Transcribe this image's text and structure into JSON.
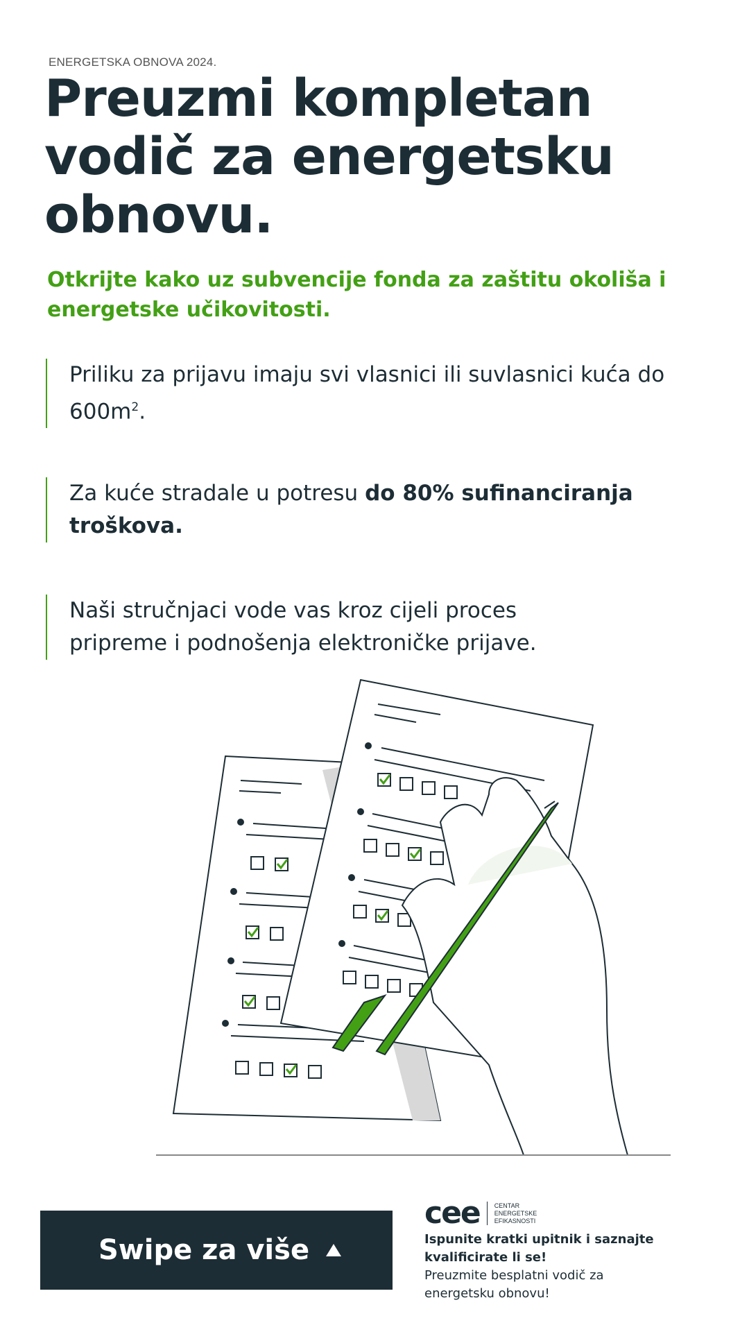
{
  "eyebrow": "ENERGETSKA OBNOVA 2024.",
  "title": "Preuzmi kompletan vodič za energetsku obnovu.",
  "subtitle": "Otkrijte kako uz subvencije fonda za zaštitu okoliša i energetske učikovitosti.",
  "points": [
    {
      "text": "Priliku za prijavu imaju svi vlasnici ili suvlasnici kuća do 600m",
      "sup": "2",
      "suffix": "."
    },
    {
      "text": "Za kuće stradale u potresu ",
      "bold": "do 80% sufinanciranja troškova."
    },
    {
      "text": "Naši stručnjaci vode vas kroz cijeli proces pripreme i podnošenja elektroničke prijave."
    }
  ],
  "cta": {
    "label": "Swipe za više",
    "icon": "triangle-up-icon"
  },
  "logo": {
    "mark": "cee",
    "lines": [
      "CENTAR",
      "ENERGETSKE",
      "EFIKASNOSTI"
    ]
  },
  "footer": {
    "headline": "Ispunite kratki upitnik i saznajte kvalificirate li se!",
    "body": "Preuzmite besplatni vodič za energetsku obnovu!"
  },
  "colors": {
    "dark": "#1d2d35",
    "accent": "#43a015"
  }
}
